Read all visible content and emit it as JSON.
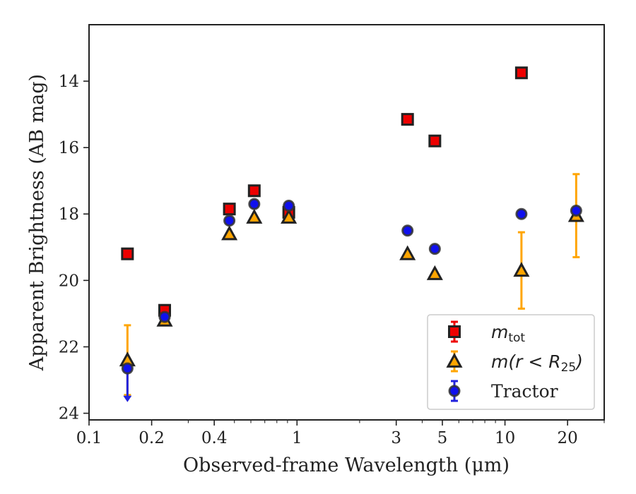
{
  "chart_data": {
    "type": "scatter",
    "title": "",
    "xlabel": "Observed-frame Wavelength (μm)",
    "ylabel": "Apparent Brightness (AB mag)",
    "xscale": "log",
    "xlim": [
      0.1,
      30
    ],
    "ylim": [
      24.2,
      12.3
    ],
    "y_inverted": true,
    "grid": false,
    "legend_position": "lower-right",
    "xticks": [
      {
        "value": 0.1,
        "label": "0.1"
      },
      {
        "value": 0.2,
        "label": "0.2"
      },
      {
        "value": 0.4,
        "label": "0.4"
      },
      {
        "value": 1,
        "label": "1"
      },
      {
        "value": 3,
        "label": "3"
      },
      {
        "value": 5,
        "label": "5"
      },
      {
        "value": 10,
        "label": "10"
      },
      {
        "value": 20,
        "label": "20"
      }
    ],
    "yticks": [
      {
        "value": 14,
        "label": "14"
      },
      {
        "value": 16,
        "label": "16"
      },
      {
        "value": 18,
        "label": "18"
      },
      {
        "value": 20,
        "label": "20"
      },
      {
        "value": 22,
        "label": "22"
      },
      {
        "value": 24,
        "label": "24"
      }
    ],
    "legend": [
      {
        "key": "mtot",
        "base": "m",
        "sub": "tot",
        "suffix": ""
      },
      {
        "key": "mr25",
        "base": "m(r < R",
        "sub": "25",
        "suffix": ")"
      },
      {
        "key": "tractor",
        "base": "Tractor",
        "sub": "",
        "suffix": ""
      }
    ],
    "series": [
      {
        "key": "mtot",
        "marker": "square",
        "color": "#ee0000",
        "edge_color": "#222222",
        "points": [
          {
            "x": 0.153,
            "y": 19.2
          },
          {
            "x": 0.231,
            "y": 20.9
          },
          {
            "x": 0.473,
            "y": 17.85
          },
          {
            "x": 0.623,
            "y": 17.3
          },
          {
            "x": 0.913,
            "y": 17.95
          },
          {
            "x": 3.4,
            "y": 15.15
          },
          {
            "x": 4.6,
            "y": 15.8
          },
          {
            "x": 12.0,
            "y": 13.75
          }
        ]
      },
      {
        "key": "mr25",
        "marker": "triangle",
        "color": "#ffa500",
        "edge_color": "#222222",
        "error_color": "#ffa500",
        "points": [
          {
            "x": 0.153,
            "y": 22.4,
            "yerr": [
              1.05,
              1.05
            ]
          },
          {
            "x": 0.231,
            "y": 21.2
          },
          {
            "x": 0.473,
            "y": 18.6
          },
          {
            "x": 0.623,
            "y": 18.1
          },
          {
            "x": 0.913,
            "y": 18.1
          },
          {
            "x": 3.4,
            "y": 19.2
          },
          {
            "x": 4.6,
            "y": 19.8
          },
          {
            "x": 12.0,
            "y": 19.7,
            "yerr": [
              1.15,
              1.15
            ]
          },
          {
            "x": 22.0,
            "y": 18.05,
            "yerr": [
              1.25,
              1.25
            ]
          }
        ]
      },
      {
        "key": "tractor",
        "marker": "circle",
        "color": "#1010ee",
        "edge_color": "#333333",
        "error_color": "#2222dd",
        "points": [
          {
            "x": 0.153,
            "y": 22.65,
            "upper_limit_to": 23.6
          },
          {
            "x": 0.231,
            "y": 21.1
          },
          {
            "x": 0.473,
            "y": 18.2
          },
          {
            "x": 0.623,
            "y": 17.7
          },
          {
            "x": 0.913,
            "y": 17.75
          },
          {
            "x": 3.4,
            "y": 18.5
          },
          {
            "x": 4.6,
            "y": 19.05
          },
          {
            "x": 12.0,
            "y": 18.0
          },
          {
            "x": 22.0,
            "y": 17.9
          }
        ]
      }
    ]
  }
}
